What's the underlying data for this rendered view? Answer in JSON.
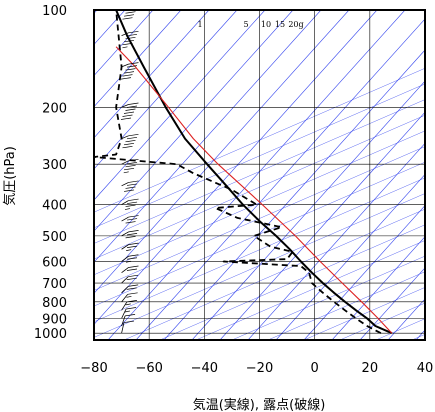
{
  "chart_data": {
    "type": "line",
    "xlabel": "気温(実線), 露点(破線)",
    "ylabel": "気圧(hPa)",
    "xlim": [
      -80,
      40
    ],
    "ylim_hPa": [
      1050,
      100
    ],
    "y_scale": "log",
    "x_ticks": [
      "−80",
      "−60",
      "−40",
      "−20",
      "0",
      "20",
      "40"
    ],
    "x_tick_values": [
      -80,
      -60,
      -40,
      -20,
      0,
      20,
      40
    ],
    "y_ticks": [
      "100",
      "200",
      "300",
      "400",
      "500",
      "600",
      "700",
      "800",
      "900",
      "1000"
    ],
    "y_tick_values": [
      100,
      200,
      300,
      400,
      500,
      600,
      700,
      800,
      900,
      1000
    ],
    "mixing_ratio_labels": [
      "1",
      "5",
      "10",
      "15",
      "20g"
    ],
    "grid": true,
    "colors": {
      "isotherm_skew": "#3344ee",
      "parcel": "#dd2222",
      "temperature": "#000000",
      "dewpoint": "#000000",
      "grid": "#000000"
    },
    "series": [
      {
        "line_style": "solid",
        "points": [
          [
            1000,
            28
          ],
          [
            950,
            22
          ],
          [
            900,
            19
          ],
          [
            850,
            15
          ],
          [
            800,
            11
          ],
          [
            750,
            7
          ],
          [
            700,
            3
          ],
          [
            650,
            -1
          ],
          [
            600,
            -5
          ],
          [
            550,
            -9
          ],
          [
            500,
            -14
          ],
          [
            450,
            -20
          ],
          [
            400,
            -26
          ],
          [
            350,
            -32
          ],
          [
            300,
            -39
          ],
          [
            250,
            -47
          ],
          [
            200,
            -54
          ],
          [
            150,
            -62
          ],
          [
            120,
            -68
          ],
          [
            100,
            -72
          ]
        ]
      },
      {
        "line_style": "dashed",
        "points": [
          [
            1000,
            24
          ],
          [
            950,
            19
          ],
          [
            900,
            15
          ],
          [
            850,
            11
          ],
          [
            800,
            7
          ],
          [
            750,
            3
          ],
          [
            700,
            -1
          ],
          [
            650,
            -2
          ],
          [
            620,
            -5
          ],
          [
            600,
            -33
          ],
          [
            590,
            -10
          ],
          [
            560,
            -8
          ],
          [
            540,
            -16
          ],
          [
            500,
            -22
          ],
          [
            470,
            -12
          ],
          [
            440,
            -28
          ],
          [
            410,
            -36
          ],
          [
            400,
            -21
          ],
          [
            360,
            -30
          ],
          [
            320,
            -44
          ],
          [
            300,
            -50
          ],
          [
            285,
            -80
          ],
          [
            280,
            -72
          ],
          [
            250,
            -70
          ],
          [
            200,
            -72
          ],
          [
            150,
            -70
          ],
          [
            100,
            -72
          ]
        ]
      },
      {
        "line_style": "solid",
        "points": [
          [
            1000,
            28
          ],
          [
            900,
            23
          ],
          [
            800,
            17
          ],
          [
            700,
            10
          ],
          [
            600,
            2
          ],
          [
            500,
            -7
          ],
          [
            400,
            -19
          ],
          [
            300,
            -35
          ],
          [
            250,
            -44
          ],
          [
            200,
            -53
          ],
          [
            150,
            -65
          ],
          [
            130,
            -72
          ]
        ]
      }
    ],
    "wind_barbs": [
      {
        "p": 1000,
        "dir": 200,
        "kt": 10
      },
      {
        "p": 950,
        "dir": 210,
        "kt": 10
      },
      {
        "p": 900,
        "dir": 220,
        "kt": 15
      },
      {
        "p": 850,
        "dir": 230,
        "kt": 15
      },
      {
        "p": 800,
        "dir": 240,
        "kt": 15
      },
      {
        "p": 750,
        "dir": 250,
        "kt": 20
      },
      {
        "p": 700,
        "dir": 250,
        "kt": 20
      },
      {
        "p": 650,
        "dir": 260,
        "kt": 20
      },
      {
        "p": 600,
        "dir": 260,
        "kt": 25
      },
      {
        "p": 550,
        "dir": 265,
        "kt": 25
      },
      {
        "p": 500,
        "dir": 270,
        "kt": 30
      },
      {
        "p": 450,
        "dir": 270,
        "kt": 30
      },
      {
        "p": 400,
        "dir": 270,
        "kt": 35
      },
      {
        "p": 350,
        "dir": 275,
        "kt": 40
      },
      {
        "p": 300,
        "dir": 275,
        "kt": 45
      },
      {
        "p": 250,
        "dir": 280,
        "kt": 50
      },
      {
        "p": 200,
        "dir": 280,
        "kt": 60
      },
      {
        "p": 150,
        "dir": 280,
        "kt": 60
      },
      {
        "p": 120,
        "dir": 280,
        "kt": 55
      },
      {
        "p": 100,
        "dir": 280,
        "kt": 50
      }
    ]
  }
}
